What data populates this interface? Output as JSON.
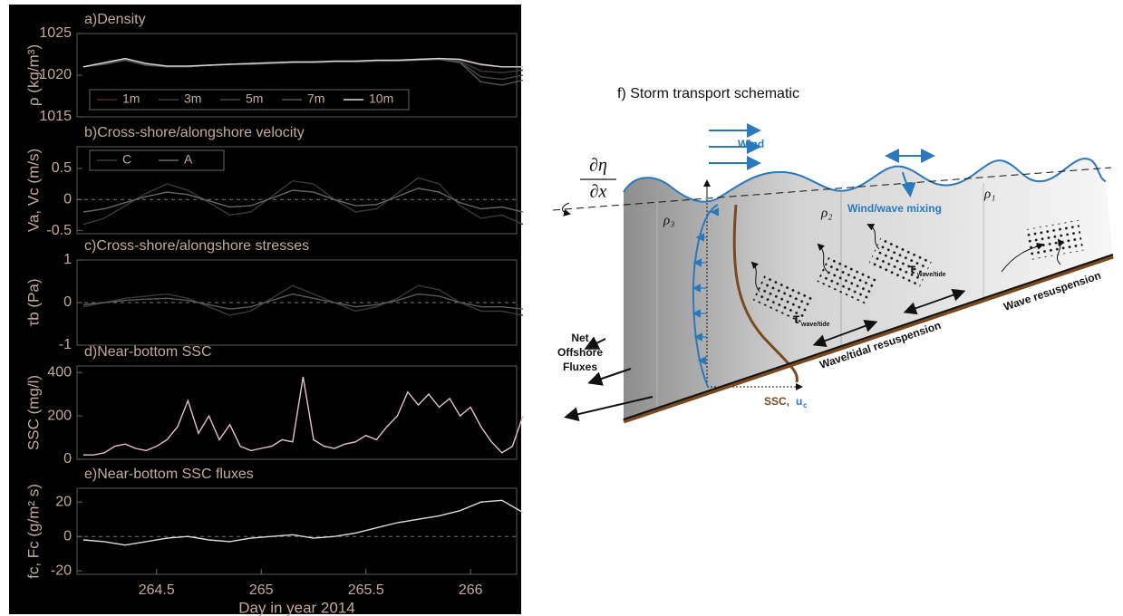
{
  "chart_data": [
    {
      "type": "line",
      "title": "a)Density",
      "ylabel": "ρ (kg/m³)",
      "xlim": [
        264.12,
        266.22
      ],
      "ylim": [
        1015,
        1025
      ],
      "yticks": [
        1015,
        1020,
        1025
      ],
      "legend": "lower left",
      "x": [
        264.15,
        264.25,
        264.35,
        264.45,
        264.55,
        264.65,
        264.75,
        264.85,
        264.95,
        265.05,
        265.15,
        265.25,
        265.35,
        265.45,
        265.55,
        265.65,
        265.75,
        265.85,
        265.95,
        266.05,
        266.15,
        266.25
      ],
      "series": [
        {
          "name": "1m",
          "color": "#4a2a2a",
          "values": [
            1021,
            1021.5,
            1022,
            1021.3,
            1021,
            1021,
            1021.2,
            1021.3,
            1021.4,
            1021.5,
            1021.5,
            1021.6,
            1021.6,
            1021.7,
            1021.8,
            1021.8,
            1021.9,
            1022,
            1021.8,
            1021.2,
            1021,
            1021
          ]
        },
        {
          "name": "3m",
          "color": "#3c3c3c",
          "values": [
            1021,
            1021.4,
            1021.9,
            1021.3,
            1021,
            1021,
            1021.2,
            1021.3,
            1021.4,
            1021.5,
            1021.5,
            1021.6,
            1021.6,
            1021.7,
            1021.7,
            1021.8,
            1021.9,
            1021.9,
            1021.7,
            1020.5,
            1020.3,
            1020.6
          ]
        },
        {
          "name": "5m",
          "color": "#474747",
          "values": [
            1021,
            1021.4,
            1021.8,
            1021.3,
            1021,
            1021,
            1021.2,
            1021.3,
            1021.4,
            1021.4,
            1021.5,
            1021.6,
            1021.6,
            1021.6,
            1021.7,
            1021.8,
            1021.8,
            1021.9,
            1021.6,
            1019.8,
            1019.5,
            1020
          ]
        },
        {
          "name": "7m",
          "color": "#555555",
          "values": [
            1021,
            1021.3,
            1021.8,
            1021.2,
            1021,
            1021,
            1021.2,
            1021.3,
            1021.3,
            1021.4,
            1021.5,
            1021.5,
            1021.6,
            1021.6,
            1021.7,
            1021.7,
            1021.8,
            1021.9,
            1021.5,
            1019.2,
            1018.8,
            1019.4
          ]
        },
        {
          "name": "10m",
          "color": "#d8d8d8",
          "values": [
            1021,
            1021.5,
            1022,
            1021.4,
            1021.1,
            1021.1,
            1021.2,
            1021.3,
            1021.4,
            1021.5,
            1021.6,
            1021.6,
            1021.7,
            1021.7,
            1021.8,
            1021.8,
            1021.9,
            1022,
            1021.9,
            1021.3,
            1021,
            1021
          ]
        }
      ]
    },
    {
      "type": "line",
      "title": "b)Cross-shore/alongshore velocity",
      "ylabel": "Va, Vc (m/s)",
      "xlim": [
        264.12,
        266.22
      ],
      "ylim": [
        -0.55,
        0.85
      ],
      "yticks": [
        -0.5,
        0,
        0.5
      ],
      "hline": 0,
      "legend": "upper left",
      "x": [
        264.15,
        264.25,
        264.35,
        264.45,
        264.55,
        264.65,
        264.75,
        264.85,
        264.95,
        265.05,
        265.15,
        265.25,
        265.35,
        265.45,
        265.55,
        265.65,
        265.75,
        265.85,
        265.95,
        266.05,
        266.15,
        266.25
      ],
      "series": [
        {
          "name": "C",
          "color": "#3a3a3a",
          "values": [
            -0.4,
            -0.3,
            -0.1,
            0.1,
            0.25,
            0.15,
            -0.05,
            -0.25,
            -0.2,
            0.05,
            0.3,
            0.25,
            0,
            -0.2,
            -0.15,
            0.1,
            0.35,
            0.25,
            -0.1,
            -0.3,
            -0.25,
            -0.4
          ]
        },
        {
          "name": "A",
          "color": "#666666",
          "values": [
            -0.2,
            -0.15,
            -0.05,
            0.05,
            0.12,
            0.08,
            -0.02,
            -0.12,
            -0.1,
            0.02,
            0.15,
            0.12,
            0,
            -0.1,
            -0.08,
            0.05,
            0.18,
            0.12,
            -0.05,
            -0.15,
            -0.12,
            -0.2
          ]
        }
      ]
    },
    {
      "type": "line",
      "title": "c)Cross-shore/alongshore stresses",
      "ylabel": "τb (Pa)",
      "xlim": [
        264.12,
        266.22
      ],
      "ylim": [
        -1,
        1
      ],
      "yticks": [
        -1,
        0,
        1
      ],
      "hline": 0,
      "x": [
        264.15,
        264.25,
        264.35,
        264.45,
        264.55,
        264.65,
        264.75,
        264.85,
        264.95,
        265.05,
        265.15,
        265.25,
        265.35,
        265.45,
        265.55,
        265.65,
        265.75,
        265.85,
        265.95,
        266.05,
        266.15,
        266.25
      ],
      "series": [
        {
          "color": "#3a3a3a",
          "values": [
            -0.1,
            0,
            0.1,
            0.15,
            0.2,
            0.1,
            -0.1,
            -0.3,
            -0.2,
            0.1,
            0.4,
            0.2,
            0,
            -0.2,
            -0.1,
            0.1,
            0.4,
            0.3,
            0,
            -0.2,
            -0.2,
            -0.3
          ]
        },
        {
          "color": "#5a5a5a",
          "values": [
            -0.05,
            0,
            0.05,
            0.08,
            0.1,
            0.05,
            -0.05,
            -0.15,
            -0.1,
            0.05,
            0.2,
            0.1,
            0,
            -0.1,
            -0.05,
            0.05,
            0.2,
            0.15,
            0,
            -0.1,
            -0.1,
            -0.15
          ]
        }
      ]
    },
    {
      "type": "line",
      "title": "d)Near-bottom SSC",
      "ylabel": "SSC (mg/l)",
      "xlim": [
        264.12,
        266.22
      ],
      "ylim": [
        0,
        430
      ],
      "yticks": [
        0,
        200,
        400
      ],
      "x": [
        264.15,
        264.2,
        264.25,
        264.3,
        264.35,
        264.4,
        264.45,
        264.5,
        264.55,
        264.6,
        264.65,
        264.7,
        264.75,
        264.8,
        264.85,
        264.9,
        264.95,
        265.0,
        265.05,
        265.1,
        265.15,
        265.2,
        265.25,
        265.3,
        265.35,
        265.4,
        265.45,
        265.5,
        265.55,
        265.6,
        265.65,
        265.7,
        265.75,
        265.8,
        265.85,
        265.9,
        265.95,
        266.0,
        266.05,
        266.1,
        266.15,
        266.2,
        266.25
      ],
      "series": [
        {
          "color": "#e2c2c6",
          "values": [
            20,
            20,
            30,
            60,
            70,
            50,
            40,
            60,
            90,
            150,
            270,
            120,
            200,
            90,
            160,
            60,
            40,
            50,
            60,
            90,
            80,
            380,
            90,
            60,
            50,
            70,
            80,
            110,
            90,
            150,
            200,
            310,
            250,
            300,
            240,
            280,
            200,
            240,
            150,
            80,
            30,
            60,
            200
          ]
        }
      ]
    },
    {
      "type": "line",
      "title": "e)Near-bottom SSC fluxes",
      "ylabel": "fc, Fc (g/m² s)",
      "xlabel": "Day in year 2014",
      "xlim": [
        264.12,
        266.22
      ],
      "ylim": [
        -22,
        28
      ],
      "yticks": [
        -20,
        0,
        20
      ],
      "xticks": [
        264.5,
        265,
        265.5,
        266
      ],
      "hline": 0,
      "x": [
        264.15,
        264.25,
        264.35,
        264.45,
        264.55,
        264.65,
        264.75,
        264.85,
        264.95,
        265.05,
        265.15,
        265.25,
        265.35,
        265.45,
        265.55,
        265.65,
        265.75,
        265.85,
        265.95,
        266.05,
        266.15,
        266.25
      ],
      "series": [
        {
          "color": "#dddddd",
          "values": [
            -2,
            -3,
            -5,
            -3,
            -1,
            0,
            -2,
            -3,
            -1,
            0,
            1,
            -1,
            0,
            2,
            5,
            8,
            10,
            12,
            15,
            20,
            21,
            14
          ]
        }
      ]
    }
  ],
  "diagram": {
    "title": "f) Storm transport schematic",
    "d_eta": "∂η",
    "d_x": "∂x",
    "wind": "Wind",
    "mixing": "Wind/wave mixing",
    "rho3": "ρ₃",
    "rho2": "ρ₂",
    "rho1": "ρ₁",
    "net_flux": [
      "Net",
      "Offshore",
      "Fluxes"
    ],
    "wave_tidal": "Wave/tidal resuspension",
    "wave_resuspension": "Wave resuspension",
    "tau": "τ",
    "tau_sub": "wave/tide",
    "ssc": "SSC,",
    "u": "u",
    "u_sub": "c"
  }
}
